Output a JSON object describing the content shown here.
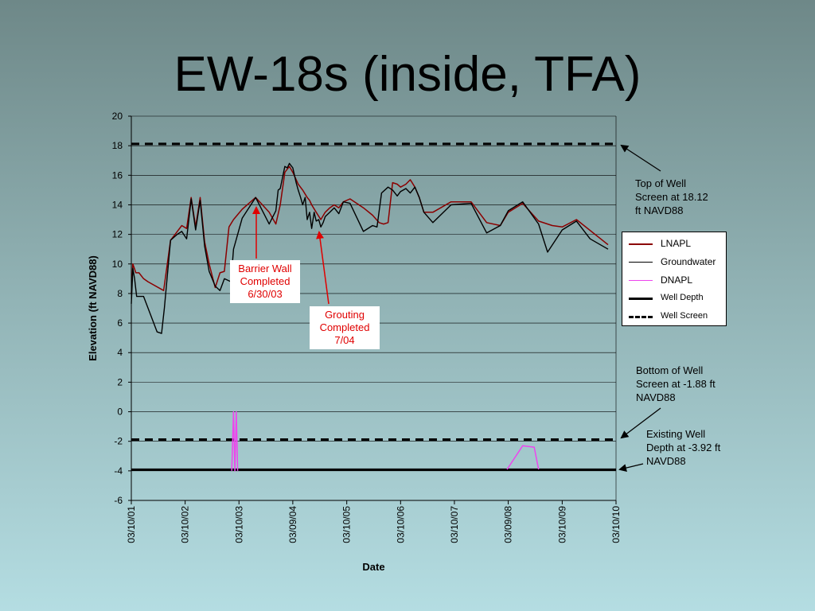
{
  "slide": {
    "title": "EW-18s (inside, TFA)"
  },
  "chart_data": {
    "type": "line",
    "title": "",
    "xlabel": "Date",
    "ylabel": "Elevation (ft NAVD88)",
    "ylim": [
      -6,
      20
    ],
    "yticks": [
      -6,
      -4,
      -2,
      0,
      2,
      4,
      6,
      8,
      10,
      12,
      14,
      16,
      18,
      20
    ],
    "xlim": [
      "2001-03-10",
      "2010-03-10"
    ],
    "xticks": [
      "03/10/01",
      "03/10/02",
      "03/10/03",
      "03/09/04",
      "03/10/05",
      "03/10/06",
      "03/10/07",
      "03/09/08",
      "03/10/09",
      "03/10/10"
    ],
    "xtick_dates": [
      "2001-03-10",
      "2002-03-10",
      "2003-03-10",
      "2004-03-09",
      "2005-03-10",
      "2006-03-10",
      "2007-03-10",
      "2008-03-09",
      "2009-03-10",
      "2010-03-10"
    ],
    "grid": "horizontal",
    "legend_position": "right",
    "series": [
      {
        "name": "LNAPL",
        "color": "#8b0000",
        "style": "solid",
        "x": [
          "2001-03-10",
          "2001-03-20",
          "2001-04-10",
          "2001-05-01",
          "2001-06-01",
          "2001-07-01",
          "2001-10-15",
          "2001-12-01",
          "2002-01-01",
          "2002-02-15",
          "2002-03-20",
          "2002-04-20",
          "2002-05-20",
          "2002-06-20",
          "2002-07-20",
          "2002-08-20",
          "2002-09-30",
          "2002-11-01",
          "2002-12-01",
          "2003-01-01",
          "2003-02-01",
          "2003-04-01",
          "2003-07-01",
          "2003-10-01",
          "2003-11-15",
          "2003-12-15",
          "2004-01-15",
          "2004-02-15",
          "2004-03-09",
          "2004-04-15",
          "2004-05-15",
          "2004-06-15",
          "2004-07-01",
          "2004-07-15",
          "2004-08-15",
          "2004-09-15",
          "2004-10-15",
          "2004-11-15",
          "2004-12-15",
          "2005-01-15",
          "2005-02-15",
          "2005-04-01",
          "2005-07-01",
          "2005-09-01",
          "2005-10-15",
          "2005-11-15",
          "2005-12-15",
          "2006-01-15",
          "2006-02-15",
          "2006-03-10",
          "2006-04-15",
          "2006-05-15",
          "2006-06-15",
          "2006-07-15",
          "2006-08-15",
          "2006-10-15",
          "2007-02-15",
          "2007-07-01",
          "2007-10-15",
          "2008-01-15",
          "2008-03-09",
          "2008-06-15",
          "2008-10-01",
          "2009-01-01",
          "2009-03-10",
          "2009-06-15",
          "2010-01-15"
        ],
        "y": [
          8.0,
          10.0,
          9.4,
          9.4,
          9.0,
          8.8,
          8.2,
          11.6,
          12.0,
          12.6,
          12.4,
          14.5,
          12.5,
          14.5,
          11.5,
          10.0,
          8.4,
          9.4,
          9.5,
          12.5,
          13.0,
          13.7,
          14.5,
          13.5,
          12.7,
          14.0,
          16.2,
          16.6,
          16.2,
          15.4,
          15.0,
          14.5,
          14.3,
          14.0,
          13.5,
          13.0,
          13.5,
          13.8,
          14.0,
          13.8,
          14.2,
          14.4,
          13.8,
          13.3,
          12.8,
          12.7,
          12.8,
          15.5,
          15.4,
          15.2,
          15.4,
          15.7,
          15.2,
          14.5,
          13.5,
          13.5,
          14.2,
          14.2,
          12.8,
          12.6,
          13.5,
          14.1,
          12.9,
          12.6,
          12.5,
          13.0,
          11.3
        ]
      },
      {
        "name": "Groundwater",
        "color": "#000000",
        "style": "solid",
        "x": [
          "2001-03-10",
          "2001-03-20",
          "2001-04-01",
          "2001-04-15",
          "2001-05-01",
          "2001-06-01",
          "2001-09-01",
          "2001-10-01",
          "2001-10-20",
          "2001-12-01",
          "2002-01-15",
          "2002-02-15",
          "2002-03-20",
          "2002-04-20",
          "2002-05-20",
          "2002-06-20",
          "2002-07-20",
          "2002-08-20",
          "2002-09-30",
          "2002-11-01",
          "2002-11-20",
          "2002-12-01",
          "2003-01-15",
          "2003-02-01",
          "2003-02-15",
          "2003-04-01",
          "2003-07-01",
          "2003-10-01",
          "2003-11-15",
          "2003-12-01",
          "2003-12-15",
          "2004-01-15",
          "2004-02-01",
          "2004-02-15",
          "2004-03-09",
          "2004-04-01",
          "2004-04-15",
          "2004-05-01",
          "2004-05-15",
          "2004-06-01",
          "2004-06-15",
          "2004-07-01",
          "2004-07-15",
          "2004-08-01",
          "2004-08-15",
          "2004-09-01",
          "2004-09-15",
          "2004-10-01",
          "2004-10-15",
          "2004-11-15",
          "2004-12-15",
          "2005-01-15",
          "2005-02-15",
          "2005-04-01",
          "2005-07-01",
          "2005-09-01",
          "2005-10-01",
          "2005-11-01",
          "2005-12-15",
          "2006-01-15",
          "2006-02-15",
          "2006-03-10",
          "2006-04-15",
          "2006-05-15",
          "2006-06-15",
          "2006-07-15",
          "2006-08-15",
          "2006-10-15",
          "2007-02-15",
          "2007-07-01",
          "2007-10-15",
          "2008-01-15",
          "2008-03-09",
          "2008-06-15",
          "2008-10-01",
          "2008-12-01",
          "2009-03-10",
          "2009-06-15",
          "2009-09-15",
          "2010-01-15"
        ],
        "y": [
          7.3,
          9.7,
          9.0,
          7.8,
          7.8,
          7.8,
          5.4,
          5.3,
          7.0,
          11.6,
          12.0,
          12.2,
          11.7,
          14.4,
          12.3,
          14.3,
          11.2,
          9.5,
          8.5,
          8.2,
          8.7,
          9.0,
          8.8,
          11.0,
          11.5,
          13.1,
          14.5,
          12.7,
          13.6,
          15.0,
          15.1,
          16.6,
          16.5,
          16.8,
          16.5,
          15.5,
          15.0,
          14.5,
          14.0,
          14.5,
          13.0,
          13.5,
          12.4,
          13.5,
          12.9,
          13.0,
          12.5,
          12.8,
          13.2,
          13.5,
          13.8,
          13.4,
          14.2,
          14.1,
          12.2,
          12.6,
          12.5,
          14.8,
          15.2,
          15.0,
          14.6,
          14.9,
          15.1,
          14.8,
          15.2,
          14.5,
          13.5,
          12.8,
          14.0,
          14.1,
          12.1,
          12.6,
          13.6,
          14.2,
          12.7,
          10.8,
          12.3,
          12.9,
          11.7,
          11.0
        ]
      },
      {
        "name": "DNAPL",
        "color": "#ee44ee",
        "style": "solid",
        "x": [
          "2003-01-20",
          "2003-02-01",
          "2003-02-10",
          "2003-02-20",
          "2003-03-01"
        ],
        "y": [
          -4.0,
          0.0,
          -4.0,
          0.0,
          -4.0
        ],
        "x2": [
          "2008-03-01",
          "2008-06-15",
          "2008-09-01",
          "2008-10-01"
        ],
        "y2": [
          -3.9,
          -2.3,
          -2.4,
          -3.9
        ]
      },
      {
        "name": "Well Depth",
        "color": "#000000",
        "style": "thick",
        "y": -3.92
      },
      {
        "name": "Well Screen",
        "color": "#000000",
        "style": "dashed",
        "y_values": [
          18.12,
          -1.88
        ]
      }
    ],
    "annotations": [
      {
        "text": "Barrier Wall\nCompleted\n6/30/03",
        "color": "#e00000"
      },
      {
        "text": "Grouting\nCompleted\n7/04",
        "color": "#e00000"
      },
      {
        "text": "Top of Well\nScreen at 18.12\nft NAVD88"
      },
      {
        "text": "Bottom of Well\nScreen at -1.88 ft\nNAVD88"
      },
      {
        "text": "Existing Well\nDepth at -3.92 ft\nNAVD88"
      }
    ]
  },
  "legend": {
    "items": [
      {
        "label": "LNAPL",
        "color": "#8b0000"
      },
      {
        "label": "Groundwater",
        "color": "#000000"
      },
      {
        "label": "DNAPL",
        "color": "#ee44ee"
      },
      {
        "label": "Well Depth",
        "color": "#000000"
      },
      {
        "label": "Well Screen",
        "color": "#000000"
      }
    ]
  }
}
